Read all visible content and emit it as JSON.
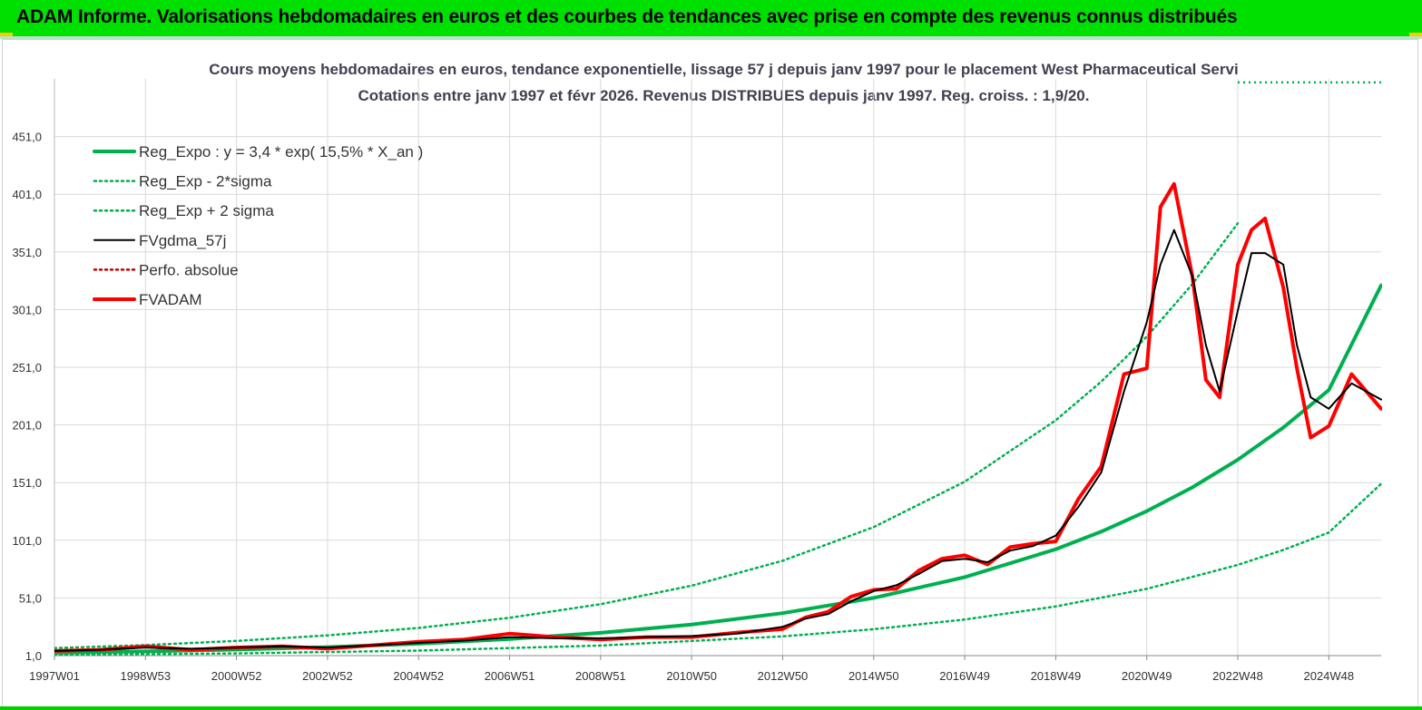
{
  "header": {
    "title": "ADAM Informe. Valorisations hebdomadaires en euros et des courbes de tendances avec prise en compte des revenus connus distribués"
  },
  "colors": {
    "header_bg": "#00e000",
    "regression": "#00b050",
    "fvgdma": "#000000",
    "fvadam": "#ff0000",
    "perfo": "#c00000"
  },
  "chart_data": {
    "type": "line",
    "title_line1": "Cours moyens hebdomadaires en euros, tendance exponentielle, lissage 57 j depuis janv 1997  pour le placement West Pharmaceutical Servi",
    "title_line2": "Cotations entre janv 1997  et févr 2026. Revenus DISTRIBUES  depuis janv 1997. Reg. croiss. : 1,9/20.",
    "x_ticks": [
      "1997W01",
      "1998W53",
      "2000W52",
      "2002W52",
      "2004W52",
      "2006W51",
      "2008W51",
      "2010W50",
      "2012W50",
      "2014W50",
      "2016W49",
      "2018W49",
      "2020W49",
      "2022W48",
      "2024W48"
    ],
    "x_tick_years": [
      1997.0,
      1999.0,
      2001.0,
      2003.0,
      2005.0,
      2007.0,
      2009.0,
      2011.0,
      2013.0,
      2015.0,
      2017.0,
      2019.0,
      2021.0,
      2023.0,
      2025.0
    ],
    "x_range": [
      1997.0,
      2026.15
    ],
    "y_ticks": [
      "1,0",
      "51,0",
      "101,0",
      "151,0",
      "201,0",
      "251,0",
      "301,0",
      "351,0",
      "401,0",
      "451,0"
    ],
    "ylim": [
      1,
      501
    ],
    "grid": true,
    "legend_position": "top-left",
    "series": [
      {
        "name": "Reg_Expo : y = 3,4 * exp( 15,5% *  X_an )",
        "style": "thick-solid",
        "color": "#00b050",
        "x": [
          1997,
          1999,
          2001,
          2003,
          2005,
          2007,
          2009,
          2011,
          2013,
          2015,
          2017,
          2019,
          2020,
          2021,
          2022,
          2023,
          2024,
          2025,
          2026.15
        ],
        "values": [
          3.4,
          4.6,
          6.2,
          8.4,
          11.3,
          15.3,
          20.7,
          27.9,
          37.8,
          51.0,
          69.0,
          93.2,
          108.5,
          126.2,
          146.8,
          170.8,
          198.7,
          231.2,
          322
        ]
      },
      {
        "name": "Reg_Exp - 2*sigma",
        "style": "dotted",
        "color": "#00b050",
        "x": [
          1997,
          2001,
          2005,
          2009,
          2013,
          2015,
          2017,
          2019,
          2021,
          2023,
          2024,
          2025,
          2026.15
        ],
        "values": [
          1.6,
          2.9,
          5.3,
          9.7,
          17.7,
          23.9,
          32.3,
          43.6,
          58.9,
          79.6,
          92.6,
          107.7,
          150
        ]
      },
      {
        "name": "Reg_Exp + 2 sigma",
        "style": "dotted",
        "color": "#00b050",
        "x": [
          1997,
          1999,
          2001,
          2003,
          2005,
          2007,
          2009,
          2011,
          2013,
          2015,
          2017,
          2019,
          2020,
          2021,
          2022,
          2023
        ],
        "values": [
          7.5,
          10.1,
          13.7,
          18.5,
          25.0,
          33.8,
          45.6,
          61.6,
          83.2,
          112.4,
          151.8,
          205.0,
          238.6,
          277.6,
          323.0,
          375.8
        ]
      },
      {
        "name": "FVgdma_57j",
        "style": "solid",
        "color": "#000000",
        "x": [
          1997,
          1998,
          1999,
          2000,
          2001,
          2002,
          2003,
          2004,
          2005,
          2006,
          2007,
          2008,
          2009,
          2010,
          2011,
          2012,
          2013,
          2013.5,
          2014,
          2014.5,
          2015,
          2015.5,
          2016,
          2016.5,
          2017,
          2017.5,
          2018,
          2018.5,
          2019,
          2019.5,
          2020,
          2020.5,
          2021,
          2021.3,
          2021.6,
          2022,
          2022.3,
          2022.6,
          2023,
          2023.3,
          2023.6,
          2024,
          2024.3,
          2024.6,
          2025,
          2025.5,
          2026.15
        ],
        "values": [
          5,
          6,
          8,
          7,
          8,
          9,
          8,
          10,
          12,
          14,
          17,
          16,
          16,
          17,
          18,
          20,
          26,
          33,
          37,
          48,
          57,
          62,
          72,
          83,
          85,
          82,
          92,
          96,
          105,
          130,
          160,
          230,
          290,
          340,
          370,
          330,
          270,
          230,
          300,
          350,
          350,
          340,
          270,
          225,
          215,
          237,
          223
        ]
      },
      {
        "name": "Perfo. absolue",
        "style": "dotted",
        "color": "#c00000",
        "x": [],
        "values": []
      },
      {
        "name": "FVADAM",
        "style": "thick-solid",
        "color": "#ff0000",
        "x": [
          1997,
          1998,
          1999,
          2000,
          2001,
          2002,
          2003,
          2004,
          2005,
          2006,
          2007,
          2008,
          2009,
          2010,
          2011,
          2012,
          2013,
          2013.5,
          2014,
          2014.5,
          2015,
          2015.5,
          2016,
          2016.5,
          2017,
          2017.5,
          2018,
          2018.5,
          2019,
          2019.5,
          2020,
          2020.5,
          2021,
          2021.3,
          2021.6,
          2022,
          2022.3,
          2022.6,
          2023,
          2023.3,
          2023.6,
          2024,
          2024.3,
          2024.6,
          2025,
          2025.5,
          2026.15
        ],
        "values": [
          5,
          6,
          9,
          6,
          8,
          9,
          7,
          10,
          13,
          15,
          20,
          17,
          15,
          17,
          17,
          21,
          24,
          34,
          39,
          52,
          58,
          59,
          75,
          85,
          88,
          80,
          95,
          98,
          100,
          137,
          165,
          245,
          250,
          390,
          410,
          330,
          240,
          225,
          340,
          370,
          380,
          320,
          250,
          190,
          200,
          245,
          215
        ]
      }
    ]
  }
}
